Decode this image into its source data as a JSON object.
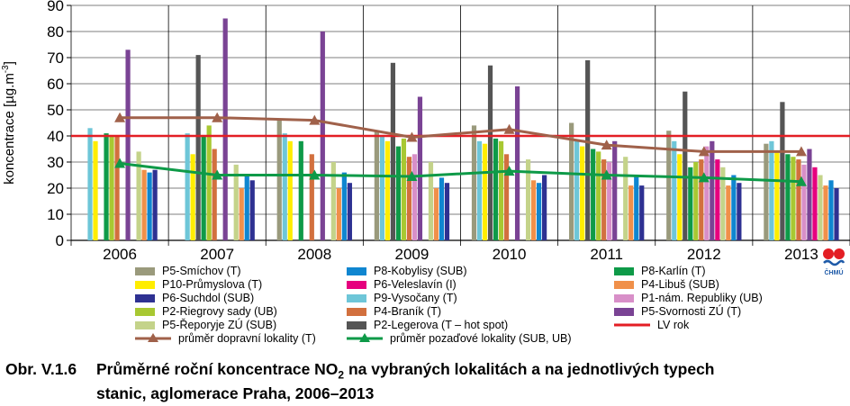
{
  "chart_data": {
    "type": "bar",
    "ylabel_main": "koncentrace [µg.m",
    "ylabel_sup": "-3",
    "ylabel_end": "]",
    "ylim": [
      0,
      90
    ],
    "yticks": [
      0,
      10,
      20,
      30,
      40,
      50,
      60,
      70,
      80,
      90
    ],
    "categories": [
      "2006",
      "2007",
      "2008",
      "2009",
      "2010",
      "2011",
      "2012",
      "2013"
    ],
    "series": [
      {
        "name": "P5-Smíchov (T)",
        "color": "#9a9a7c",
        "values": [
          null,
          null,
          46,
          42,
          44,
          45,
          42,
          37
        ]
      },
      {
        "name": "P9-Vysočany (T)",
        "color": "#6ec6d8",
        "values": [
          43,
          41,
          41,
          40,
          38,
          38,
          38,
          38
        ]
      },
      {
        "name": "P10-Průmyslova (T)",
        "color": "#ffed00",
        "values": [
          38,
          33,
          38,
          38,
          37,
          36,
          33,
          34
        ]
      },
      {
        "name": "P2-Legerova (T – hot spot)",
        "color": "#555555",
        "values": [
          null,
          71,
          null,
          68,
          67,
          69,
          57,
          53
        ]
      },
      {
        "name": "P8-Karlín (T)",
        "color": "#0e9a48",
        "values": [
          41,
          40,
          38,
          36,
          39,
          35,
          28,
          33
        ]
      },
      {
        "name": "P2-Riegrovy sady (UB)",
        "color": "#a8c832",
        "values": [
          40,
          44,
          null,
          39,
          38,
          34,
          30,
          32
        ]
      },
      {
        "name": "P4-Braník (T)",
        "color": "#d2703e",
        "values": [
          40,
          35,
          33,
          32,
          33,
          31,
          31,
          31
        ]
      },
      {
        "name": "P1-nám. Republiky (UB)",
        "color": "#d88fc8",
        "values": [
          null,
          null,
          null,
          33,
          null,
          30,
          36,
          29
        ]
      },
      {
        "name": "P5-Svornosti ZÚ (T)",
        "color": "#7a4394",
        "values": [
          73,
          85,
          80,
          55,
          59,
          38,
          38,
          35
        ]
      },
      {
        "name": "P6-Veleslavín (I)",
        "color": "#e6007e",
        "values": [
          null,
          null,
          null,
          null,
          null,
          null,
          31,
          28
        ]
      },
      {
        "name": "P5-Řeporyje ZÚ (SUB)",
        "color": "#c4d38a",
        "values": [
          34,
          29,
          30,
          30,
          31,
          32,
          28,
          25
        ]
      },
      {
        "name": "P4-Libuš (SUB)",
        "color": "#f0904a",
        "values": [
          27,
          20,
          20,
          20,
          23,
          21,
          21,
          21
        ]
      },
      {
        "name": "P8-Kobylisy (SUB)",
        "color": "#0f86d0",
        "values": [
          26,
          25,
          26,
          24,
          22,
          25,
          25,
          23
        ]
      },
      {
        "name": "P6-Suchdol (SUB)",
        "color": "#2e3192",
        "values": [
          27,
          23,
          22,
          22,
          25,
          21,
          22,
          20
        ]
      }
    ],
    "lines": [
      {
        "name": "průměr dopravní lokality (T)",
        "color": "#a0614a",
        "marker": "triangle",
        "values": [
          47,
          47,
          46,
          39.5,
          42.5,
          36.5,
          34,
          34
        ]
      },
      {
        "name": "průměr pozaďové lokality (SUB, UB)",
        "color": "#0e9a48",
        "marker": "triangle",
        "values": [
          29.5,
          25,
          25,
          24.5,
          26.5,
          25,
          24,
          22.5
        ]
      }
    ],
    "limit": {
      "name": "LV rok",
      "value": 40,
      "color": "#e31e24"
    }
  },
  "legend": {
    "col1": [
      "P5-Smíchov (T)",
      "P10-Průmyslova (T)",
      "P6-Suchdol (SUB)",
      "P2-Riegrovy sady (UB)",
      "P5-Řeporyje ZÚ (SUB)",
      "průměr dopravní lokality (T)"
    ],
    "col2": [
      "P8-Kobylisy (SUB)",
      "P6-Veleslavín (I)",
      "P9-Vysočany (T)",
      "P4-Braník (T)",
      "P2-Legerova (T – hot spot)",
      "průměr pozaďové lokality (SUB, UB)"
    ],
    "col3": [
      "P8-Karlín (T)",
      "P4-Libuš (SUB)",
      "P1-nám. Republiky (UB)",
      "P5-Svornosti ZÚ (T)",
      "LV rok"
    ]
  },
  "caption": {
    "number": "Obr. V.1.6",
    "line1_pre": "Průměrné roční koncentrace NO",
    "sub": "2",
    "line1_post": " na vybraných lokalitách a na jednotlivých typech",
    "line2": "stanic, aglomerace Praha, 2006–2013"
  },
  "logo": {
    "text": "ČHMÚ"
  }
}
